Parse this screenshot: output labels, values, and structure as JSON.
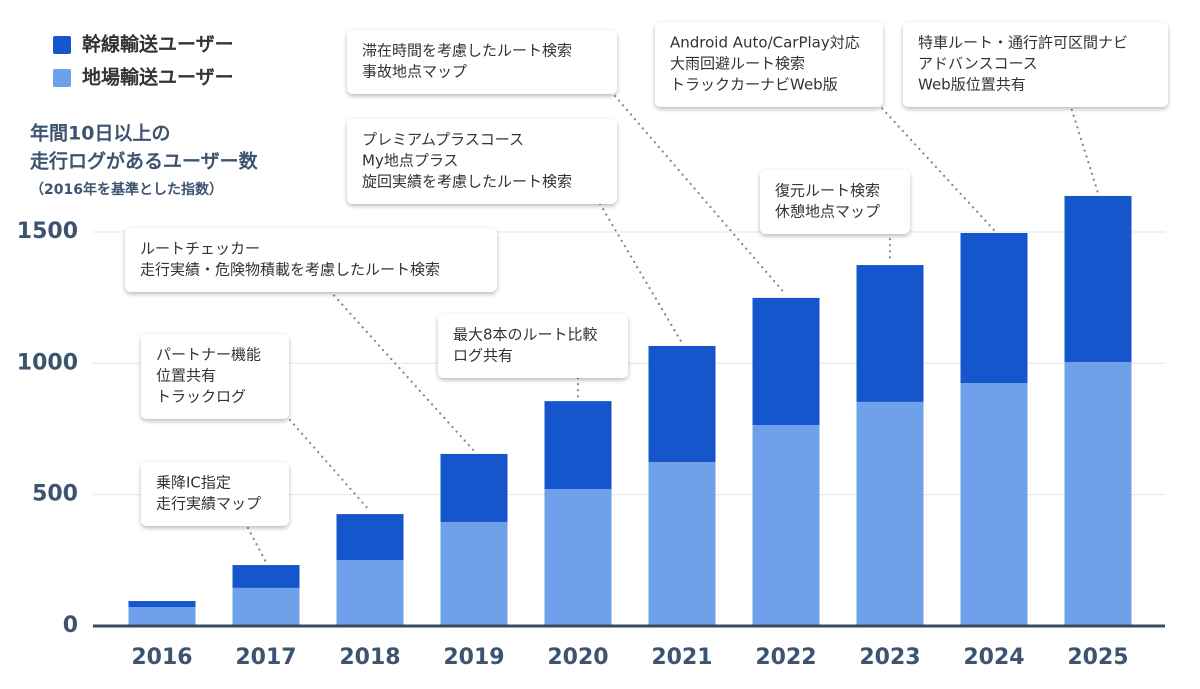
{
  "chart_data": {
    "type": "stacked_bar",
    "y_label": [
      "年間10日以上の",
      "走行ログがあるユーザー数"
    ],
    "y_label_note": "（2016年を基準とした指数）",
    "categories": [
      "2016",
      "2017",
      "2018",
      "2019",
      "2020",
      "2021",
      "2022",
      "2023",
      "2024",
      "2025"
    ],
    "series": [
      {
        "name": "幹線輸送ユーザー",
        "color": "#1556cc",
        "values": [
          23,
          87,
          175,
          259,
          335,
          442,
          484,
          521,
          571,
          632
        ]
      },
      {
        "name": "地場輸送ユーザー",
        "color": "#6fa0ea",
        "values": [
          72,
          145,
          251,
          396,
          521,
          624,
          765,
          853,
          925,
          1005
        ]
      }
    ],
    "ylim": [
      0,
      1700
    ],
    "yticks": [
      0,
      500,
      1000,
      1500
    ],
    "grid": true,
    "legend": "top-left",
    "annotations": [
      {
        "category": "2017",
        "lines": [
          "乗降IC指定",
          "走行実績マップ"
        ]
      },
      {
        "category": "2018",
        "lines": [
          "パートナー機能",
          "位置共有",
          "トラックログ"
        ]
      },
      {
        "category": "2019",
        "lines": [
          "ルートチェッカー",
          "走行実績・危険物積載を考慮したルート検索"
        ]
      },
      {
        "category": "2020",
        "lines": [
          "最大8本のルート比較",
          "ログ共有"
        ]
      },
      {
        "category": "2021",
        "lines": [
          "プレミアムプラスコース",
          "My地点プラス",
          "旋回実績を考慮したルート検索"
        ]
      },
      {
        "category": "2022",
        "lines": [
          "滞在時間を考慮したルート検索",
          "事故地点マップ"
        ]
      },
      {
        "category": "2023",
        "lines": [
          "復元ルート検索",
          "休憩地点マップ"
        ]
      },
      {
        "category": "2024",
        "lines": [
          "Android Auto/CarPlay対応",
          "大雨回避ルート検索",
          "トラックカーナビWeb版"
        ]
      },
      {
        "category": "2025",
        "lines": [
          "特車ルート・通行許可区間ナビ",
          "アドバンスコース",
          "Web版位置共有"
        ]
      }
    ]
  }
}
